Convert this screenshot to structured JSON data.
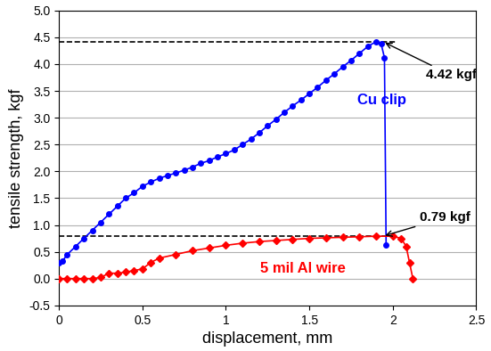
{
  "chart_data": {
    "type": "line",
    "x_label": "displacement, mm",
    "y_label": "tensile strength, kgf",
    "xlim": [
      0,
      2.5
    ],
    "xticks": [
      0,
      0.5,
      1,
      1.5,
      2,
      2.5
    ],
    "ylim": [
      -0.5,
      5.0
    ],
    "yticks": [
      -0.5,
      {
        "value": 0,
        "label": "0.0"
      },
      0.5,
      {
        "value": 1,
        "label": "1.0"
      },
      1.5,
      {
        "value": 2,
        "label": "2.0"
      },
      2.5,
      {
        "value": 3,
        "label": "3.0"
      },
      3.5,
      {
        "value": 4,
        "label": "4.0"
      },
      4.5,
      {
        "value": 5,
        "label": "5.0"
      }
    ],
    "grid": true,
    "series": [
      {
        "name": "Cu clip",
        "color": "#0000ff",
        "marker": "circle",
        "line_style": "solid",
        "x": [
          0,
          0.02,
          0.05,
          0.1,
          0.15,
          0.2,
          0.25,
          0.3,
          0.35,
          0.4,
          0.45,
          0.5,
          0.55,
          0.6,
          0.65,
          0.7,
          0.75,
          0.8,
          0.85,
          0.9,
          0.95,
          1.0,
          1.05,
          1.1,
          1.15,
          1.2,
          1.25,
          1.3,
          1.35,
          1.4,
          1.45,
          1.5,
          1.55,
          1.6,
          1.65,
          1.7,
          1.75,
          1.8,
          1.85,
          1.9,
          1.93,
          1.95,
          1.96
        ],
        "values": [
          0.3,
          0.32,
          0.45,
          0.6,
          0.75,
          0.9,
          1.05,
          1.2,
          1.35,
          1.5,
          1.6,
          1.72,
          1.8,
          1.87,
          1.92,
          1.97,
          2.02,
          2.08,
          2.15,
          2.2,
          2.27,
          2.33,
          2.4,
          2.5,
          2.6,
          2.72,
          2.85,
          2.97,
          3.1,
          3.22,
          3.33,
          3.45,
          3.57,
          3.7,
          3.82,
          3.95,
          4.07,
          4.2,
          4.33,
          4.42,
          4.38,
          4.12,
          0.62
        ]
      },
      {
        "name": "5 mil Al wire",
        "color": "#ff0000",
        "marker": "diamond",
        "line_style": "solid",
        "x": [
          0,
          0.05,
          0.1,
          0.15,
          0.2,
          0.25,
          0.3,
          0.35,
          0.4,
          0.45,
          0.5,
          0.55,
          0.6,
          0.7,
          0.8,
          0.9,
          1.0,
          1.1,
          1.2,
          1.3,
          1.4,
          1.5,
          1.6,
          1.7,
          1.8,
          1.9,
          2.0,
          2.05,
          2.08,
          2.1,
          2.12
        ],
        "values": [
          0,
          0,
          0,
          0,
          0,
          0.02,
          0.1,
          0.1,
          0.12,
          0.15,
          0.18,
          0.3,
          0.38,
          0.45,
          0.52,
          0.57,
          0.62,
          0.66,
          0.69,
          0.71,
          0.73,
          0.75,
          0.76,
          0.77,
          0.78,
          0.79,
          0.79,
          0.75,
          0.6,
          0.3,
          0.0
        ]
      }
    ],
    "annotations": [
      {
        "text": "4.42 kgf",
        "x": 1.9,
        "value": 4.42
      },
      {
        "text": "0.79 kgf",
        "x": 1.9,
        "value": 0.79
      }
    ]
  }
}
